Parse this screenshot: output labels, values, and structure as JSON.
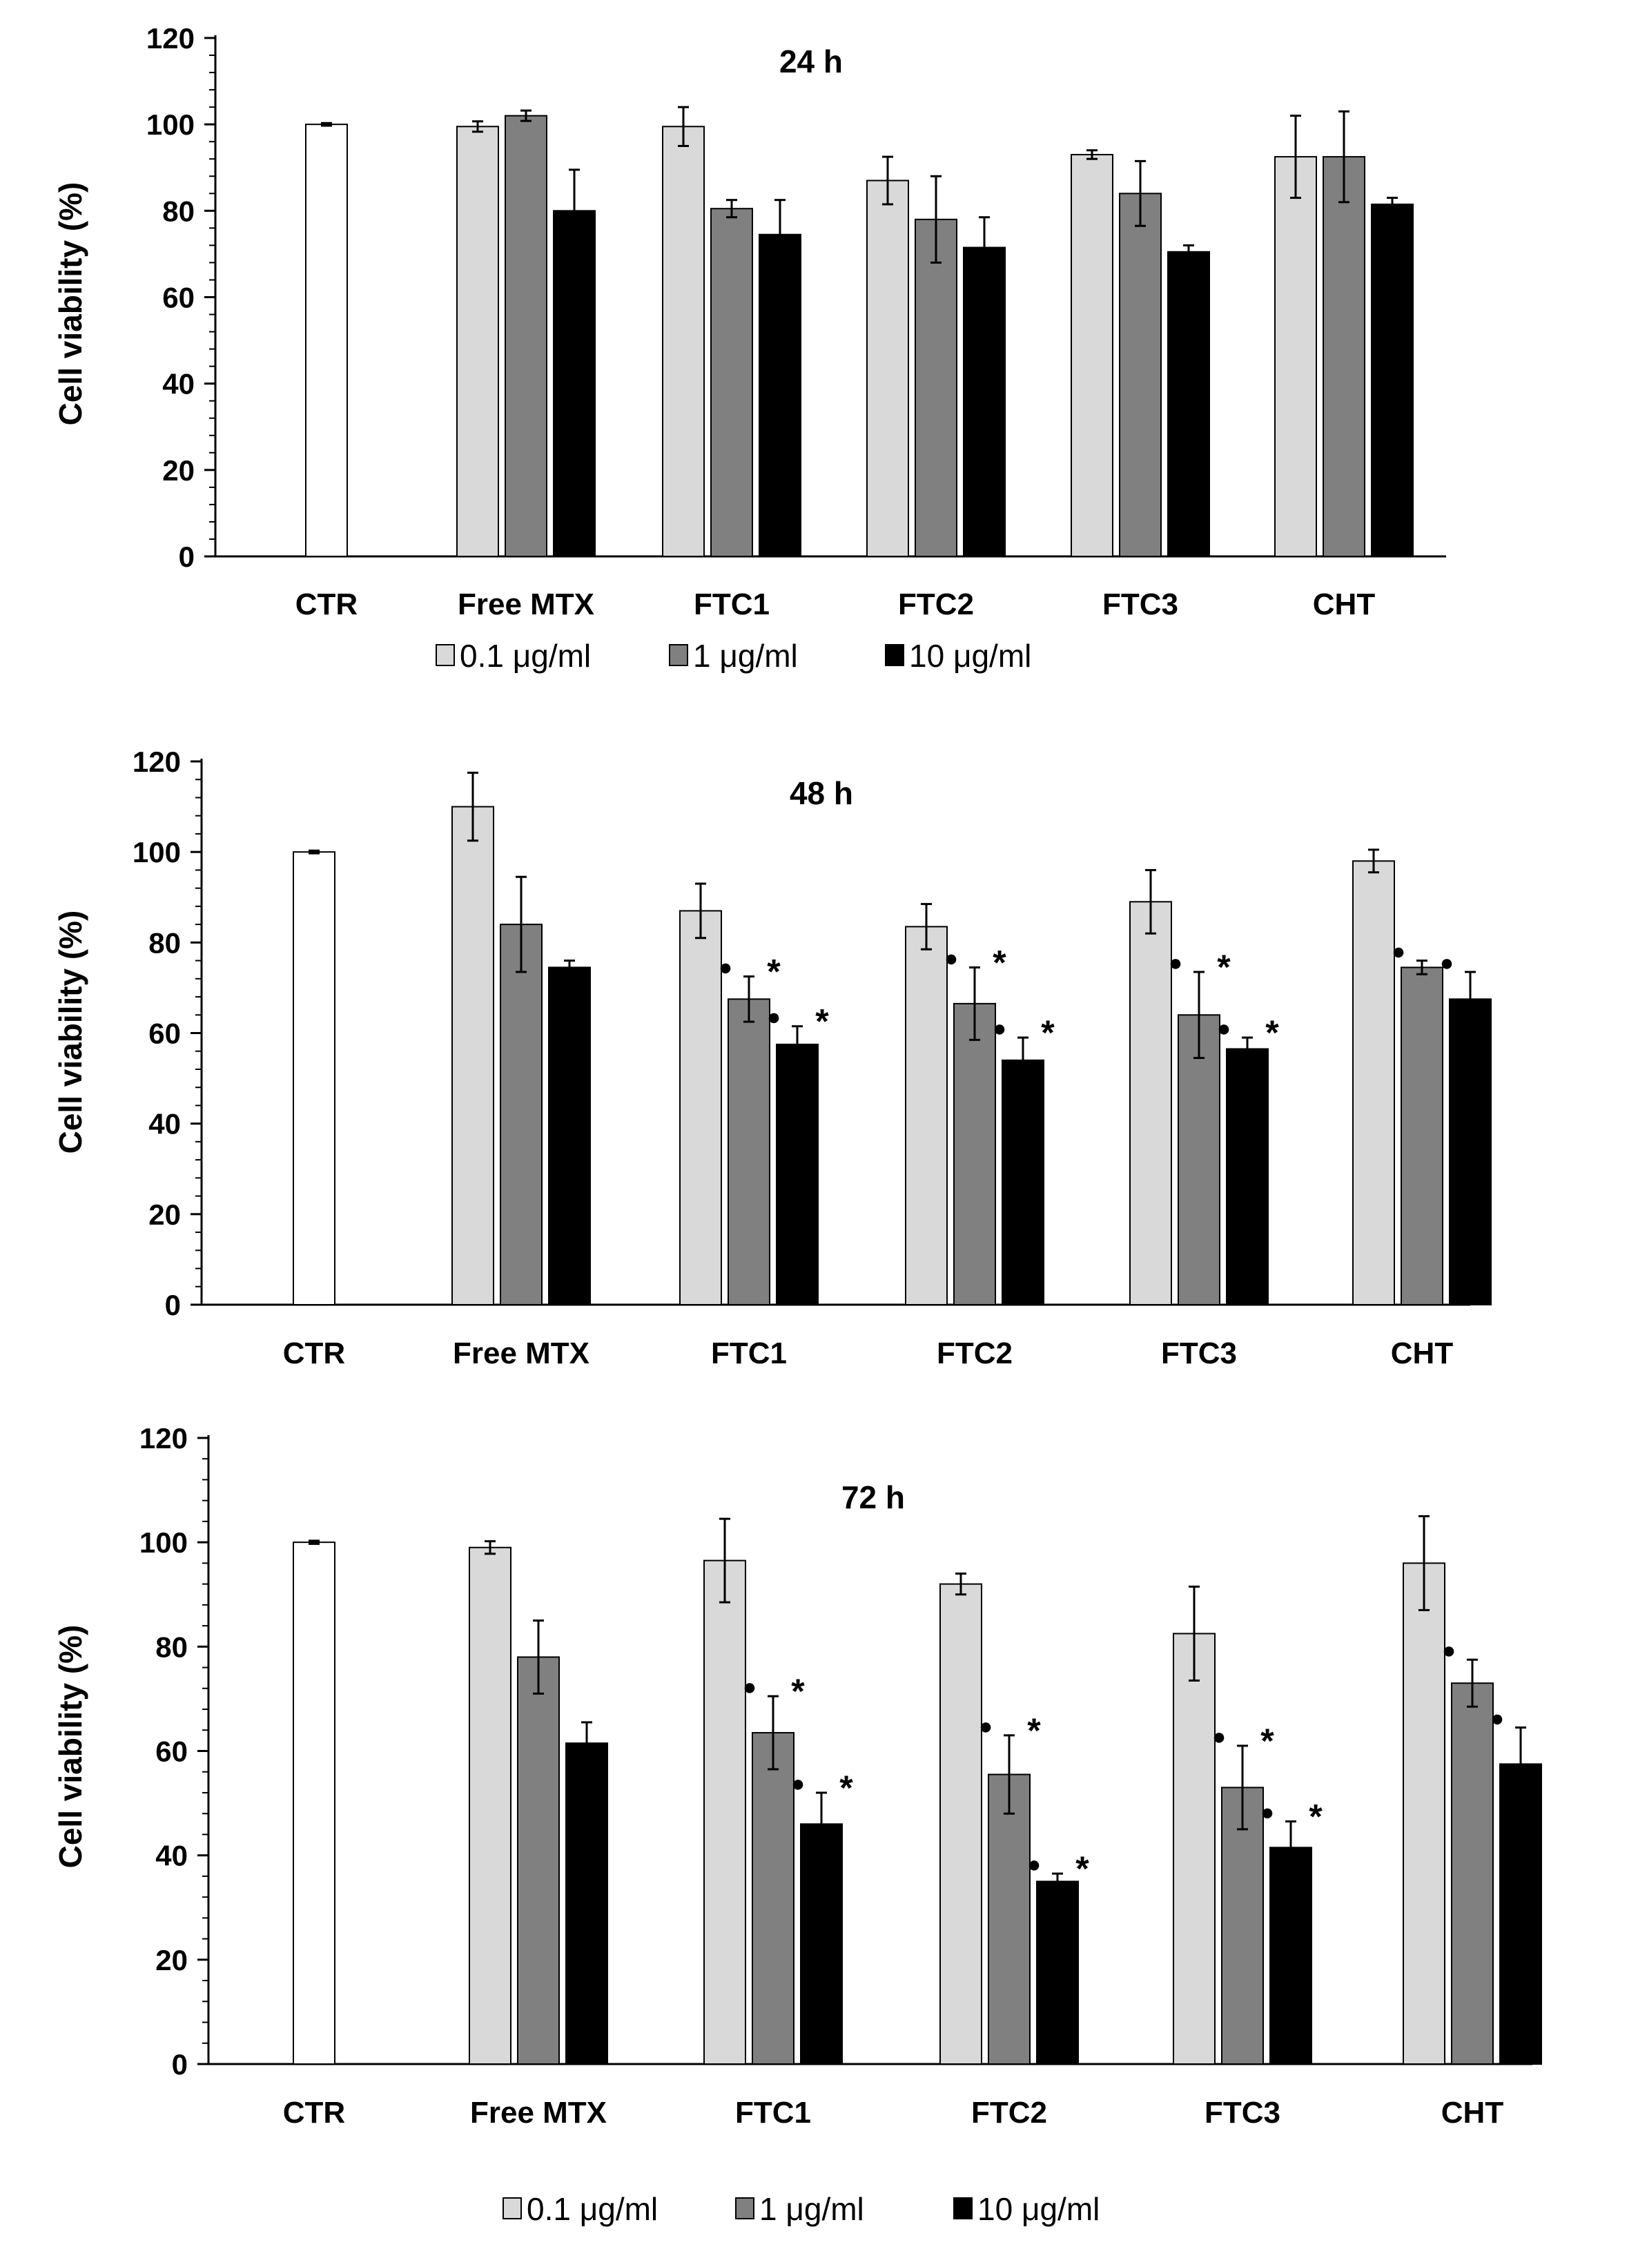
{
  "legends": [
    {
      "items": [
        "0.1 μg/ml",
        "1  μg/ml",
        "10  μg/ml"
      ]
    },
    {
      "items": [
        "0.1 μg/ml",
        "1  μg/ml",
        "10  μg/ml"
      ]
    }
  ],
  "chart_data": [
    {
      "type": "bar",
      "title": "24 h",
      "ylabel": "Cell viability (%)",
      "xlabel": "",
      "ylim": [
        0,
        120
      ],
      "yticks": [
        "0",
        "20",
        "40",
        "60",
        "80",
        "100",
        "120"
      ],
      "categories": [
        "CTR",
        "Free MTX",
        "FTC1",
        "FTC2",
        "FTC3",
        "CHT"
      ],
      "control": {
        "category": "CTR",
        "value": 100,
        "error": 0.3,
        "color": "#ffffff"
      },
      "series": [
        {
          "name": "0.1 μg/ml",
          "color": "#d9d9d9",
          "values": [
            null,
            99.5,
            99.5,
            87,
            93,
            92.5
          ],
          "errors": [
            null,
            1.2,
            4.5,
            5.5,
            1,
            9.5
          ]
        },
        {
          "name": "1  μg/ml",
          "color": "#808080",
          "values": [
            null,
            102,
            80.5,
            78,
            84,
            92.5
          ],
          "errors": [
            null,
            1.2,
            2,
            10,
            7.5,
            10.5
          ]
        },
        {
          "name": "10  μg/ml",
          "color": "#000000",
          "values": [
            null,
            80,
            74.5,
            71.5,
            70.5,
            81.5
          ],
          "errors": [
            null,
            9.5,
            8,
            7,
            1.5,
            1.5
          ]
        }
      ],
      "markers": []
    },
    {
      "type": "bar",
      "title": "48 h",
      "ylabel": "Cell viability (%)",
      "xlabel": "",
      "ylim": [
        0,
        120
      ],
      "yticks": [
        "0",
        "20",
        "40",
        "60",
        "80",
        "100",
        "120"
      ],
      "categories": [
        "CTR",
        "Free MTX",
        "FTC1",
        "FTC2",
        "FTC3",
        "CHT"
      ],
      "control": {
        "category": "CTR",
        "value": 100,
        "error": 0.3,
        "color": "#ffffff"
      },
      "series": [
        {
          "name": "0.1 μg/ml",
          "color": "#d9d9d9",
          "values": [
            null,
            110,
            87,
            83.5,
            89,
            98
          ],
          "errors": [
            null,
            7.5,
            6,
            5,
            7,
            2.5
          ]
        },
        {
          "name": "1  μg/ml",
          "color": "#808080",
          "values": [
            null,
            84,
            67.5,
            66.5,
            64,
            74.5
          ],
          "errors": [
            null,
            10.5,
            5,
            8,
            9.5,
            1.5
          ]
        },
        {
          "name": "10  μg/ml",
          "color": "#000000",
          "values": [
            null,
            74.5,
            57.5,
            54,
            56.5,
            67.5
          ],
          "errors": [
            null,
            1.5,
            4,
            5,
            2.5,
            6
          ]
        }
      ],
      "markers": [
        {
          "category": "FTC1",
          "series": 1,
          "labels": [
            "●",
            "*"
          ]
        },
        {
          "category": "FTC1",
          "series": 2,
          "labels": [
            "●",
            "*"
          ]
        },
        {
          "category": "FTC2",
          "series": 1,
          "labels": [
            "●",
            "*"
          ]
        },
        {
          "category": "FTC2",
          "series": 2,
          "labels": [
            "●",
            "*"
          ]
        },
        {
          "category": "FTC3",
          "series": 1,
          "labels": [
            "●",
            "*"
          ]
        },
        {
          "category": "FTC3",
          "series": 2,
          "labels": [
            "●",
            "*"
          ]
        },
        {
          "category": "CHT",
          "series": 1,
          "labels": [
            "●"
          ]
        },
        {
          "category": "CHT",
          "series": 2,
          "labels": [
            "●"
          ]
        }
      ]
    },
    {
      "type": "bar",
      "title": "72 h",
      "ylabel": "Cell viability (%)",
      "xlabel": "",
      "ylim": [
        0,
        120
      ],
      "yticks": [
        "0",
        "20",
        "40",
        "60",
        "80",
        "100",
        "120"
      ],
      "categories": [
        "CTR",
        "Free MTX",
        "FTC1",
        "FTC2",
        "FTC3",
        "CHT"
      ],
      "control": {
        "category": "CTR",
        "value": 100,
        "error": 0.3,
        "color": "#ffffff"
      },
      "series": [
        {
          "name": "0.1 μg/ml",
          "color": "#d9d9d9",
          "values": [
            null,
            99,
            96.5,
            92,
            82.5,
            96
          ],
          "errors": [
            null,
            1.2,
            8,
            2,
            9,
            9
          ]
        },
        {
          "name": "1  μg/ml",
          "color": "#808080",
          "values": [
            null,
            78,
            63.5,
            55.5,
            53,
            73
          ],
          "errors": [
            null,
            7,
            7,
            7.5,
            8,
            4.5
          ]
        },
        {
          "name": "10  μg/ml",
          "color": "#000000",
          "values": [
            null,
            61.5,
            46,
            35,
            41.5,
            57.5
          ],
          "errors": [
            null,
            4,
            6,
            1.5,
            5,
            7
          ]
        }
      ],
      "markers": [
        {
          "category": "FTC1",
          "series": 1,
          "labels": [
            "●",
            "*"
          ]
        },
        {
          "category": "FTC1",
          "series": 2,
          "labels": [
            "●",
            "*"
          ]
        },
        {
          "category": "FTC2",
          "series": 1,
          "labels": [
            "●",
            "*"
          ]
        },
        {
          "category": "FTC2",
          "series": 2,
          "labels": [
            "●",
            "*"
          ]
        },
        {
          "category": "FTC3",
          "series": 1,
          "labels": [
            "●",
            "*"
          ]
        },
        {
          "category": "FTC3",
          "series": 2,
          "labels": [
            "●",
            "*"
          ]
        },
        {
          "category": "CHT",
          "series": 1,
          "labels": [
            "●"
          ]
        },
        {
          "category": "CHT",
          "series": 2,
          "labels": [
            "●"
          ]
        }
      ]
    }
  ]
}
